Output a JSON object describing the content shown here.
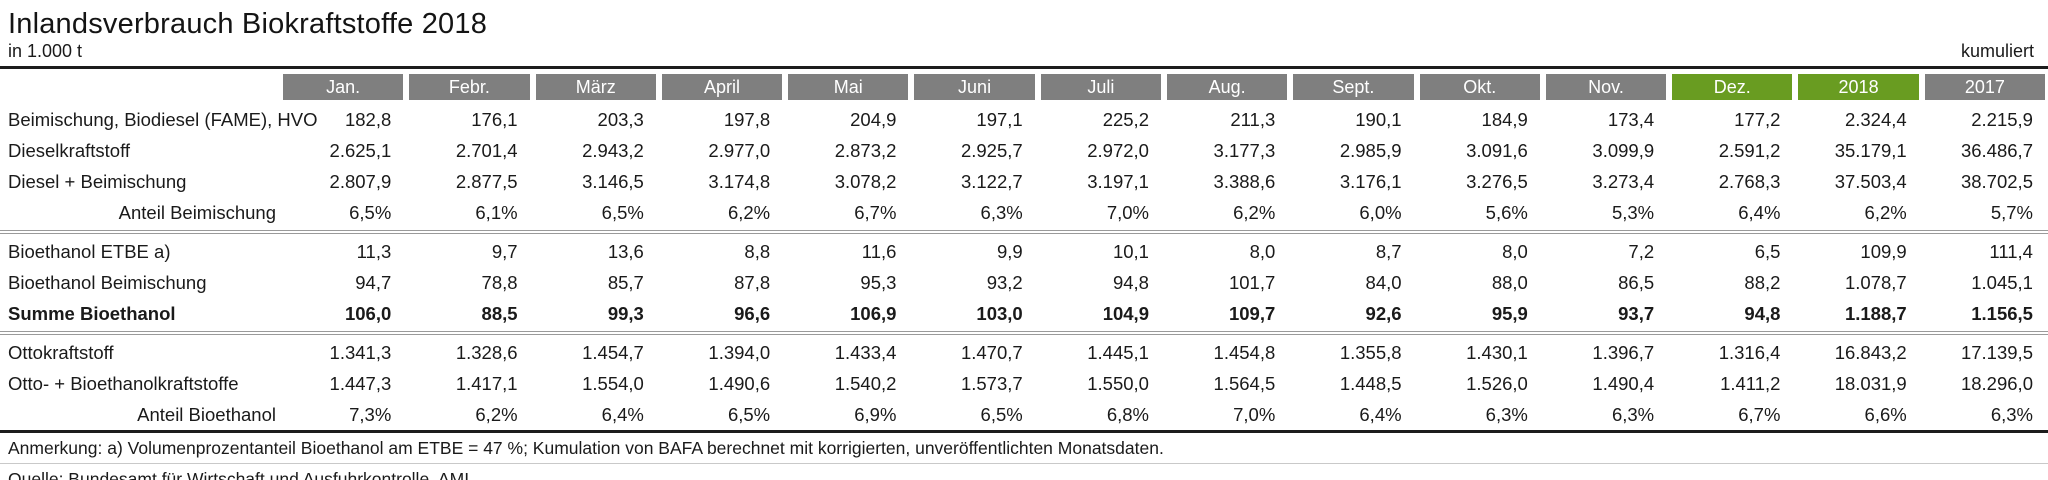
{
  "title": "Inlandsverbrauch Biokraftstoffe 2018",
  "unit_label": "in 1.000 t",
  "cumulative_label": "kumuliert",
  "colors": {
    "header_gray": "#7f7f7f",
    "header_green": "#699c21",
    "text": "#1a1a1a",
    "rule_dark": "#1c1c1c",
    "divider_gray": "#9a9a9a"
  },
  "chart_data": {
    "type": "table",
    "title": "Inlandsverbrauch Biokraftstoffe 2018",
    "unit": "in 1.000 t",
    "columns": [
      "Jan.",
      "Febr.",
      "März",
      "April",
      "Mai",
      "Juni",
      "Juli",
      "Aug.",
      "Sept.",
      "Okt.",
      "Nov.",
      "Dez.",
      "2018",
      "2017"
    ],
    "green_column_indices": [
      11,
      12
    ],
    "rows": [
      {
        "label": "Beimischung, Biodiesel (FAME), HVO",
        "align": "left",
        "bold": false,
        "separator_after": false,
        "values": [
          "182,8",
          "176,1",
          "203,3",
          "197,8",
          "204,9",
          "197,1",
          "225,2",
          "211,3",
          "190,1",
          "184,9",
          "173,4",
          "177,2",
          "2.324,4",
          "2.215,9"
        ]
      },
      {
        "label": "Dieselkraftstoff",
        "align": "left",
        "bold": false,
        "separator_after": false,
        "values": [
          "2.625,1",
          "2.701,4",
          "2.943,2",
          "2.977,0",
          "2.873,2",
          "2.925,7",
          "2.972,0",
          "3.177,3",
          "2.985,9",
          "3.091,6",
          "3.099,9",
          "2.591,2",
          "35.179,1",
          "36.486,7"
        ]
      },
      {
        "label": "Diesel + Beimischung",
        "align": "left",
        "bold": false,
        "separator_after": false,
        "values": [
          "2.807,9",
          "2.877,5",
          "3.146,5",
          "3.174,8",
          "3.078,2",
          "3.122,7",
          "3.197,1",
          "3.388,6",
          "3.176,1",
          "3.276,5",
          "3.273,4",
          "2.768,3",
          "37.503,4",
          "38.702,5"
        ]
      },
      {
        "label": "Anteil Beimischung",
        "align": "right",
        "bold": false,
        "separator_after": true,
        "values": [
          "6,5%",
          "6,1%",
          "6,5%",
          "6,2%",
          "6,7%",
          "6,3%",
          "7,0%",
          "6,2%",
          "6,0%",
          "5,6%",
          "5,3%",
          "6,4%",
          "6,2%",
          "5,7%"
        ]
      },
      {
        "label": "Bioethanol ETBE a)",
        "align": "left",
        "bold": false,
        "separator_after": false,
        "values": [
          "11,3",
          "9,7",
          "13,6",
          "8,8",
          "11,6",
          "9,9",
          "10,1",
          "8,0",
          "8,7",
          "8,0",
          "7,2",
          "6,5",
          "109,9",
          "111,4"
        ]
      },
      {
        "label": "Bioethanol Beimischung",
        "align": "left",
        "bold": false,
        "separator_after": false,
        "values": [
          "94,7",
          "78,8",
          "85,7",
          "87,8",
          "95,3",
          "93,2",
          "94,8",
          "101,7",
          "84,0",
          "88,0",
          "86,5",
          "88,2",
          "1.078,7",
          "1.045,1"
        ]
      },
      {
        "label": "Summe Bioethanol",
        "align": "left",
        "bold": true,
        "separator_after": true,
        "values": [
          "106,0",
          "88,5",
          "99,3",
          "96,6",
          "106,9",
          "103,0",
          "104,9",
          "109,7",
          "92,6",
          "95,9",
          "93,7",
          "94,8",
          "1.188,7",
          "1.156,5"
        ]
      },
      {
        "label": "Ottokraftstoff",
        "align": "left",
        "bold": false,
        "separator_after": false,
        "values": [
          "1.341,3",
          "1.328,6",
          "1.454,7",
          "1.394,0",
          "1.433,4",
          "1.470,7",
          "1.445,1",
          "1.454,8",
          "1.355,8",
          "1.430,1",
          "1.396,7",
          "1.316,4",
          "16.843,2",
          "17.139,5"
        ]
      },
      {
        "label": "Otto- + Bioethanolkraftstoffe",
        "align": "left",
        "bold": false,
        "separator_after": false,
        "values": [
          "1.447,3",
          "1.417,1",
          "1.554,0",
          "1.490,6",
          "1.540,2",
          "1.573,7",
          "1.550,0",
          "1.564,5",
          "1.448,5",
          "1.526,0",
          "1.490,4",
          "1.411,2",
          "18.031,9",
          "18.296,0"
        ]
      },
      {
        "label": "Anteil Bioethanol",
        "align": "right",
        "bold": false,
        "separator_after": false,
        "values": [
          "7,3%",
          "6,2%",
          "6,4%",
          "6,5%",
          "6,9%",
          "6,5%",
          "6,8%",
          "7,0%",
          "6,4%",
          "6,3%",
          "6,3%",
          "6,7%",
          "6,6%",
          "6,3%"
        ]
      }
    ]
  },
  "footnote": "Anmerkung: a) Volumenprozentanteil Bioethanol am ETBE = 47 %; Kumulation von BAFA berechnet mit korrigierten, unveröffentlichten Monatsdaten.",
  "source": "Quelle: Bundesamt für Wirtschaft und Ausfuhrkontrolle, AMI"
}
